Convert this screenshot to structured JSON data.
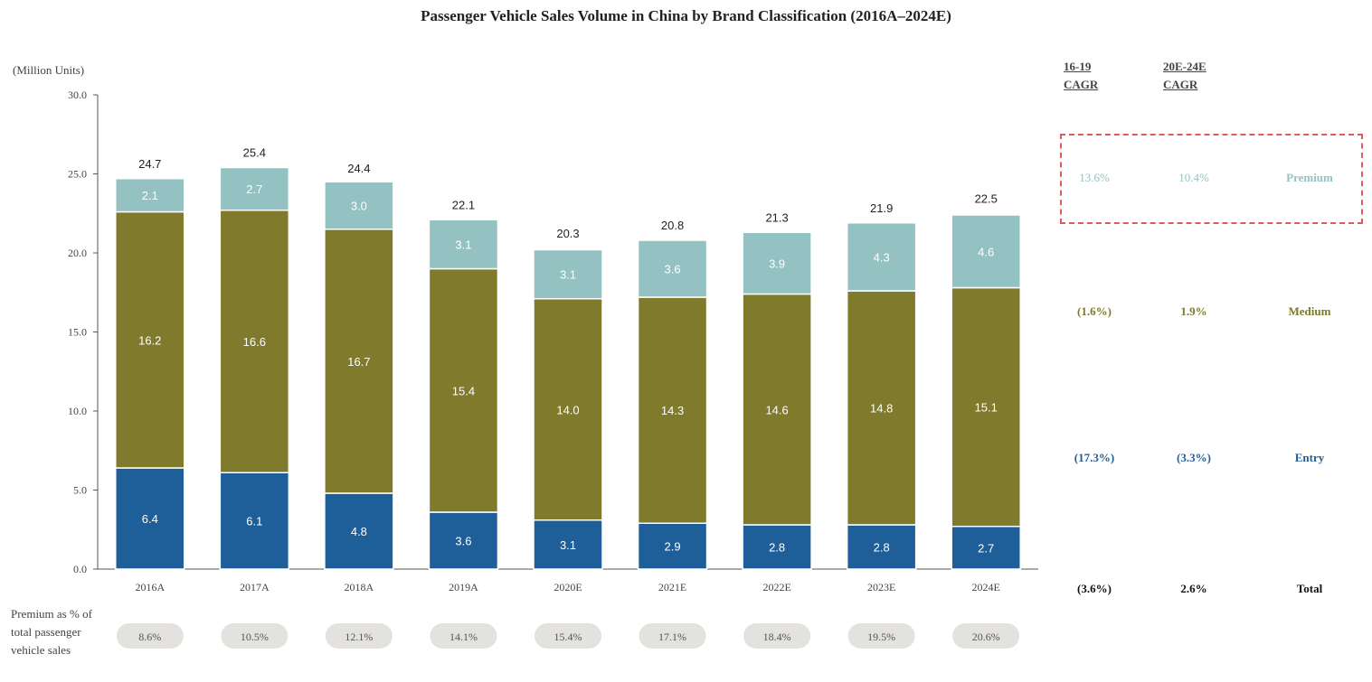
{
  "chart_data": {
    "type": "bar",
    "stacked": true,
    "title": "Passenger Vehicle Sales Volume in China by Brand Classification (2016A–2024E)",
    "ylabel": "(Million Units)",
    "ylim": [
      0,
      30
    ],
    "yticks": [
      "0.0",
      "5.0",
      "10.0",
      "15.0",
      "20.0",
      "25.0",
      "30.0"
    ],
    "categories": [
      "2016A",
      "2017A",
      "2018A",
      "2019A",
      "2020E",
      "2021E",
      "2022E",
      "2023E",
      "2024E"
    ],
    "series": [
      {
        "name": "Entry",
        "color": "#1f5f99",
        "values": [
          6.4,
          6.1,
          4.8,
          3.6,
          3.1,
          2.9,
          2.8,
          2.8,
          2.7
        ],
        "labels": [
          "6.4",
          "6.1",
          "4.8",
          "3.6",
          "3.1",
          "2.9",
          "2.8",
          "2.8",
          "2.7"
        ]
      },
      {
        "name": "Medium",
        "color": "#7f7a2c",
        "values": [
          16.2,
          16.6,
          16.7,
          15.4,
          14.0,
          14.3,
          14.6,
          14.8,
          15.1
        ],
        "labels": [
          "16.2",
          "16.6",
          "16.7",
          "15.4",
          "14.0",
          "14.3",
          "14.6",
          "14.8",
          "15.1"
        ]
      },
      {
        "name": "Premium",
        "color": "#94c2c2",
        "values": [
          2.1,
          2.7,
          3.0,
          3.1,
          3.1,
          3.6,
          3.9,
          4.3,
          4.6
        ],
        "labels": [
          "2.1",
          "2.7",
          "3.0",
          "3.1",
          "3.1",
          "3.6",
          "3.9",
          "4.3",
          "4.6"
        ]
      }
    ],
    "totals": [
      "24.7",
      "25.4",
      "24.4",
      "22.1",
      "20.3",
      "20.8",
      "21.3",
      "21.9",
      "22.5"
    ],
    "premium_share_label": "Premium as % of total passenger vehicle sales",
    "premium_share": [
      "8.6%",
      "10.5%",
      "12.1%",
      "14.1%",
      "15.4%",
      "17.1%",
      "18.4%",
      "19.5%",
      "20.6%"
    ],
    "cagr": {
      "col1_header": [
        "16-19",
        "CAGR"
      ],
      "col2_header": [
        "20E-24E",
        "CAGR"
      ],
      "rows": [
        {
          "name": "Premium",
          "col1": "13.6%",
          "col2": "10.4%",
          "color": "#94c2c2"
        },
        {
          "name": "Medium",
          "col1": "(1.6%)",
          "col2": "1.9%",
          "color": "#7f7a2c"
        },
        {
          "name": "Entry",
          "col1": "(17.3%)",
          "col2": "(3.3%)",
          "color": "#1f5f99"
        },
        {
          "name": "Total",
          "col1": "(3.6%)",
          "col2": "2.6%",
          "color": "#111111"
        }
      ]
    },
    "grid": false,
    "colors": {
      "axis": "#555555",
      "pill": "#e4e2df",
      "highlight_border": "#e05a5a"
    }
  }
}
